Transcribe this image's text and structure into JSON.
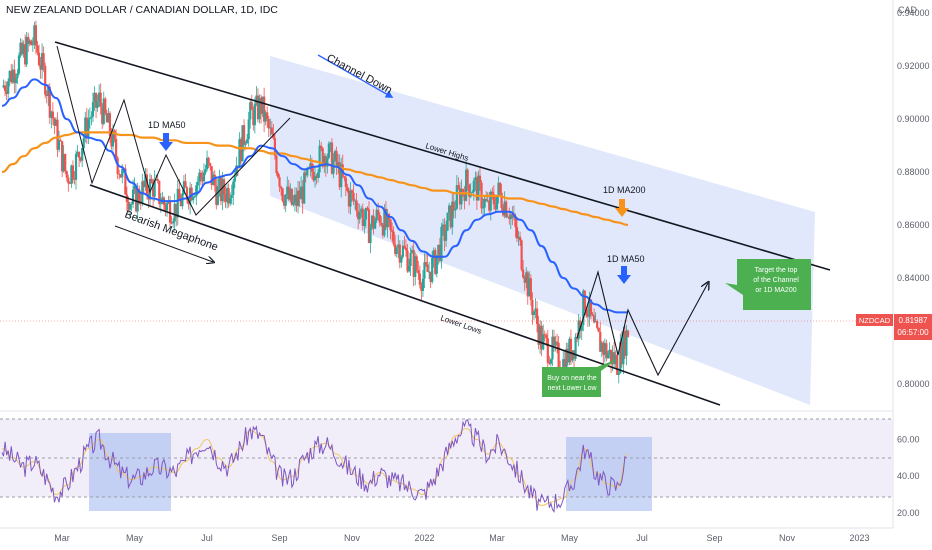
{
  "title": "NEW ZEALAND DOLLAR / CANADIAN DOLLAR, 1D, IDC",
  "currency": "CAD",
  "price_label": {
    "symbol": "NZDCAD",
    "price": "0.81987",
    "countdown": "06:57:00"
  },
  "colors": {
    "up": "#26a69a",
    "down": "#ef5350",
    "ma50": "#2962ff",
    "ma200": "#f7931a",
    "rsi": "#7e57c2",
    "rsi_ma": "#f0c75e",
    "channel": "#c9d5f7",
    "callout": "#4caf50",
    "arrow_blue": "#2962ff",
    "arrow_orange": "#f7931a"
  },
  "annotations": {
    "channel_down": "Channel Down",
    "lower_highs": "Lower Highs",
    "lower_lows": "Lower Lows",
    "bearish_megaphone": "Bearish Megaphone",
    "ma50_label_1": "1D MA50",
    "ma50_label_2": "1D MA50",
    "ma200_label": "1D MA200",
    "callout_buy": [
      "Buy on near the",
      "next Lower Low"
    ],
    "callout_target": [
      "Target the top",
      "of the Channel",
      "or 1D MA200"
    ]
  },
  "chart_data": {
    "type": "line",
    "x_axis": {
      "ticks": [
        "Mar",
        "May",
        "Jul",
        "Sep",
        "Nov",
        "2022",
        "Mar",
        "May",
        "Jul",
        "Sep",
        "Nov",
        "2023"
      ]
    },
    "y_axis": {
      "ticks": [
        "0.94000",
        "0.92000",
        "0.90000",
        "0.88000",
        "0.86000",
        "0.84000",
        "0.82000",
        "0.80000"
      ],
      "range": [
        0.792,
        0.945
      ]
    },
    "series": [
      {
        "name": "",
        "values": [
          0.912,
          0.918,
          0.925,
          0.93,
          0.915,
          0.895,
          0.878,
          0.885,
          0.9,
          0.907,
          0.895,
          0.88,
          0.868,
          0.873,
          0.875,
          0.868,
          0.866,
          0.872,
          0.876,
          0.882,
          0.872,
          0.873,
          0.888,
          0.901,
          0.905,
          0.892,
          0.873,
          0.867,
          0.874,
          0.883,
          0.888,
          0.882,
          0.872,
          0.867,
          0.859,
          0.864,
          0.856,
          0.851,
          0.846,
          0.84,
          0.845,
          0.857,
          0.869,
          0.876,
          0.874,
          0.866,
          0.872,
          0.866,
          0.851,
          0.832,
          0.816,
          0.812,
          0.808,
          0.815,
          0.832,
          0.818,
          0.812,
          0.808,
          0.82
        ]
      },
      {
        "name": "1D MA50",
        "values": [
          0.905,
          0.908,
          0.912,
          0.915,
          0.913,
          0.908,
          0.9,
          0.895,
          0.893,
          0.892,
          0.888,
          0.882,
          0.876,
          0.872,
          0.87,
          0.869,
          0.869,
          0.87,
          0.872,
          0.876,
          0.878,
          0.879,
          0.882,
          0.886,
          0.89,
          0.889,
          0.886,
          0.883,
          0.881,
          0.882,
          0.883,
          0.882,
          0.879,
          0.875,
          0.87,
          0.867,
          0.863,
          0.858,
          0.854,
          0.85,
          0.848,
          0.848,
          0.852,
          0.858,
          0.862,
          0.864,
          0.865,
          0.865,
          0.862,
          0.858,
          0.852,
          0.846,
          0.84,
          0.836,
          0.833,
          0.83,
          0.828,
          0.827,
          0.827
        ]
      },
      {
        "name": "1D MA200",
        "values": [
          0.88,
          0.883,
          0.886,
          0.889,
          0.891,
          0.893,
          0.894,
          0.895,
          0.895,
          0.895,
          0.895,
          0.894,
          0.894,
          0.893,
          0.893,
          0.892,
          0.892,
          0.891,
          0.891,
          0.891,
          0.89,
          0.89,
          0.889,
          0.889,
          0.888,
          0.887,
          0.887,
          0.886,
          0.885,
          0.884,
          0.883,
          0.882,
          0.881,
          0.88,
          0.879,
          0.878,
          0.877,
          0.876,
          0.875,
          0.874,
          0.873,
          0.873,
          0.872,
          0.872,
          0.871,
          0.871,
          0.871,
          0.87,
          0.87,
          0.869,
          0.868,
          0.867,
          0.866,
          0.865,
          0.864,
          0.863,
          0.862,
          0.861,
          0.86
        ]
      }
    ],
    "rsi": {
      "ticks": [
        "60.00",
        "40.00",
        "20.00"
      ],
      "range": [
        15,
        75
      ],
      "levels": [
        70,
        50,
        30
      ],
      "values": [
        55,
        50,
        45,
        48,
        40,
        30,
        35,
        45,
        55,
        60,
        50,
        42,
        38,
        40,
        45,
        44,
        42,
        48,
        55,
        60,
        50,
        45,
        55,
        65,
        62,
        48,
        38,
        40,
        50,
        56,
        58,
        52,
        45,
        40,
        36,
        42,
        38,
        36,
        33,
        30,
        38,
        50,
        62,
        66,
        60,
        52,
        58,
        50,
        40,
        30,
        24,
        26,
        28,
        38,
        55,
        42,
        36,
        34,
        52
      ]
    }
  }
}
